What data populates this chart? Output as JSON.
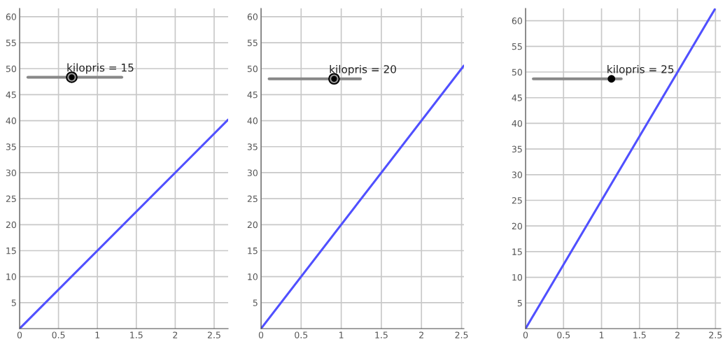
{
  "chart_data": [
    {
      "type": "line",
      "annotations": [
        "kilopris = 15"
      ],
      "x": [
        0,
        2.68
      ],
      "series": [
        {
          "color": "#5050ff",
          "values": [
            0,
            40.2
          ]
        }
      ],
      "xlim": [
        0,
        2.68
      ],
      "ylim": [
        0,
        61.6
      ],
      "xticks": [
        0,
        0.5,
        1,
        1.5,
        2,
        2.5
      ],
      "yticks": [
        5,
        10,
        15,
        20,
        25,
        30,
        35,
        40,
        45,
        50,
        55,
        60
      ],
      "grid": true,
      "marker": "none",
      "line_style": "solid"
    },
    {
      "type": "line",
      "annotations": [
        "kilopris = 20"
      ],
      "x": [
        0,
        2.53
      ],
      "series": [
        {
          "color": "#5050ff",
          "values": [
            0,
            50.6
          ]
        }
      ],
      "xlim": [
        0,
        2.53
      ],
      "ylim": [
        0,
        61.6
      ],
      "xticks": [
        0,
        0.5,
        1,
        1.5,
        2,
        2.5
      ],
      "yticks": [
        5,
        10,
        15,
        20,
        25,
        30,
        35,
        40,
        45,
        50,
        55,
        60
      ],
      "grid": true,
      "marker": "none",
      "line_style": "solid"
    },
    {
      "type": "line",
      "annotations": [
        "kilopris = 25"
      ],
      "x": [
        0,
        2.49
      ],
      "series": [
        {
          "color": "#5050ff",
          "values": [
            0,
            62.2
          ]
        }
      ],
      "xlim": [
        0,
        2.57
      ],
      "ylim": [
        0,
        62.4
      ],
      "xticks": [
        0,
        0.5,
        1,
        1.5,
        2,
        2.5
      ],
      "yticks": [
        5,
        10,
        15,
        20,
        25,
        30,
        35,
        40,
        45,
        50,
        55,
        60
      ],
      "grid": true,
      "marker": "none",
      "line_style": "solid"
    }
  ]
}
